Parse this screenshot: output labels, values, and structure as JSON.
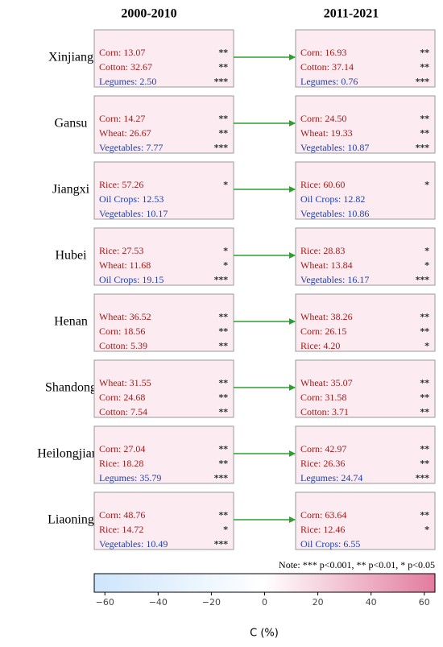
{
  "header": {
    "left": "2000-2010",
    "right": "2011-2021"
  },
  "rows": [
    {
      "province": "Xinjiang",
      "left": [
        {
          "text": "Corn: 13.07",
          "stars": "**",
          "color": "#a31a1a"
        },
        {
          "text": "Cotton: 32.67",
          "stars": "**",
          "color": "#a31a1a"
        },
        {
          "text": "Legumes: 2.50",
          "stars": "***",
          "color": "#1f3fa8"
        }
      ],
      "right": [
        {
          "text": "Corn: 16.93",
          "stars": "**",
          "color": "#a31a1a"
        },
        {
          "text": "Cotton: 37.14",
          "stars": "**",
          "color": "#a31a1a"
        },
        {
          "text": "Legumes: 0.76",
          "stars": "***",
          "color": "#1f3fa8"
        }
      ]
    },
    {
      "province": "Gansu",
      "left": [
        {
          "text": "Corn: 14.27",
          "stars": "**",
          "color": "#a31a1a"
        },
        {
          "text": "Wheat: 26.67",
          "stars": "**",
          "color": "#a31a1a"
        },
        {
          "text": "Vegetables: 7.77",
          "stars": "***",
          "color": "#1f3fa8"
        }
      ],
      "right": [
        {
          "text": "Corn: 24.50",
          "stars": "**",
          "color": "#a31a1a"
        },
        {
          "text": "Wheat: 19.33",
          "stars": "**",
          "color": "#a31a1a"
        },
        {
          "text": "Vegetables: 10.87",
          "stars": "***",
          "color": "#1f3fa8"
        }
      ]
    },
    {
      "province": "Jiangxi",
      "left": [
        {
          "text": "Rice: 57.26",
          "stars": "*",
          "color": "#a31a1a"
        },
        {
          "text": "Oil Crops: 12.53",
          "color": "#1f3fa8"
        },
        {
          "text": "Vegetables: 10.17",
          "color": "#1f3fa8"
        }
      ],
      "right": [
        {
          "text": "Rice: 60.60",
          "stars": "*",
          "color": "#a31a1a"
        },
        {
          "text": "Oil Crops: 12.82",
          "color": "#1f3fa8"
        },
        {
          "text": "Vegetables: 10.86",
          "color": "#1f3fa8"
        }
      ]
    },
    {
      "province": "Hubei",
      "left": [
        {
          "text": "Rice: 27.53",
          "stars": "*",
          "color": "#a31a1a"
        },
        {
          "text": "Wheat: 11.68",
          "stars": "*",
          "color": "#a31a1a"
        },
        {
          "text": "Oil Crops: 19.15",
          "stars": "***",
          "color": "#1f3fa8"
        }
      ],
      "right": [
        {
          "text": "Rice: 28.83",
          "stars": "*",
          "color": "#a31a1a"
        },
        {
          "text": "Wheat: 13.84",
          "stars": "*",
          "color": "#a31a1a"
        },
        {
          "text": "Vegetables: 16.17",
          "stars": "***",
          "color": "#1f3fa8"
        }
      ]
    },
    {
      "province": "Henan",
      "left": [
        {
          "text": "Wheat: 36.52",
          "stars": "**",
          "color": "#a31a1a"
        },
        {
          "text": "Corn: 18.56",
          "stars": "**",
          "color": "#a31a1a"
        },
        {
          "text": "Cotton: 5.39",
          "stars": "**",
          "color": "#a31a1a"
        }
      ],
      "right": [
        {
          "text": "Wheat: 38.26",
          "stars": "**",
          "color": "#a31a1a"
        },
        {
          "text": "Corn: 26.15",
          "stars": "**",
          "color": "#a31a1a"
        },
        {
          "text": "Rice: 4.20",
          "stars": "*",
          "color": "#a31a1a"
        }
      ]
    },
    {
      "province": "Shandong",
      "left": [
        {
          "text": "Wheat: 31.55",
          "stars": "**",
          "color": "#a31a1a"
        },
        {
          "text": "Corn: 24.68",
          "stars": "**",
          "color": "#a31a1a"
        },
        {
          "text": "Cotton: 7.54",
          "stars": "**",
          "color": "#a31a1a"
        }
      ],
      "right": [
        {
          "text": "Wheat: 35.07",
          "stars": "**",
          "color": "#a31a1a"
        },
        {
          "text": "Corn: 31.58",
          "stars": "**",
          "color": "#a31a1a"
        },
        {
          "text": "Cotton: 3.71",
          "stars": "**",
          "color": "#a31a1a"
        }
      ]
    },
    {
      "province": "Heilongjiang",
      "left": [
        {
          "text": "Corn: 27.04",
          "stars": "**",
          "color": "#a31a1a"
        },
        {
          "text": "Rice: 18.28",
          "stars": "**",
          "color": "#a31a1a"
        },
        {
          "text": "Legumes: 35.79",
          "stars": "***",
          "color": "#1f3fa8"
        }
      ],
      "right": [
        {
          "text": "Corn: 42.97",
          "stars": "**",
          "color": "#a31a1a"
        },
        {
          "text": "Rice: 26.36",
          "stars": "**",
          "color": "#a31a1a"
        },
        {
          "text": "Legumes: 24.74",
          "stars": "***",
          "color": "#1f3fa8"
        }
      ]
    },
    {
      "province": "Liaoning",
      "left": [
        {
          "text": "Corn: 48.76",
          "stars": "**",
          "color": "#a31a1a"
        },
        {
          "text": "Rice: 14.72",
          "stars": "*",
          "color": "#a31a1a"
        },
        {
          "text": "Vegetables: 10.49",
          "stars": "***",
          "color": "#1f3fa8"
        }
      ],
      "right": [
        {
          "text": "Corn: 63.64",
          "stars": "**",
          "color": "#a31a1a"
        },
        {
          "text": "Rice: 12.46",
          "stars": "*",
          "color": "#a31a1a"
        },
        {
          "text": "Oil Crops: 6.55",
          "color": "#1f3fa8"
        }
      ]
    }
  ],
  "note": "Note: *** p<0.001, ** p<0.01, * p<0.05",
  "colorbar": {
    "label": "C (%)",
    "lim": [
      -64,
      64
    ],
    "colors": [
      "#cde5fb",
      "#ffffff",
      "#e27c9e"
    ],
    "ticks": [
      {
        "value": -60,
        "label": "−60"
      },
      {
        "value": -40,
        "label": "−40"
      },
      {
        "value": -20,
        "label": "−20"
      },
      0,
      20,
      40,
      60
    ]
  }
}
